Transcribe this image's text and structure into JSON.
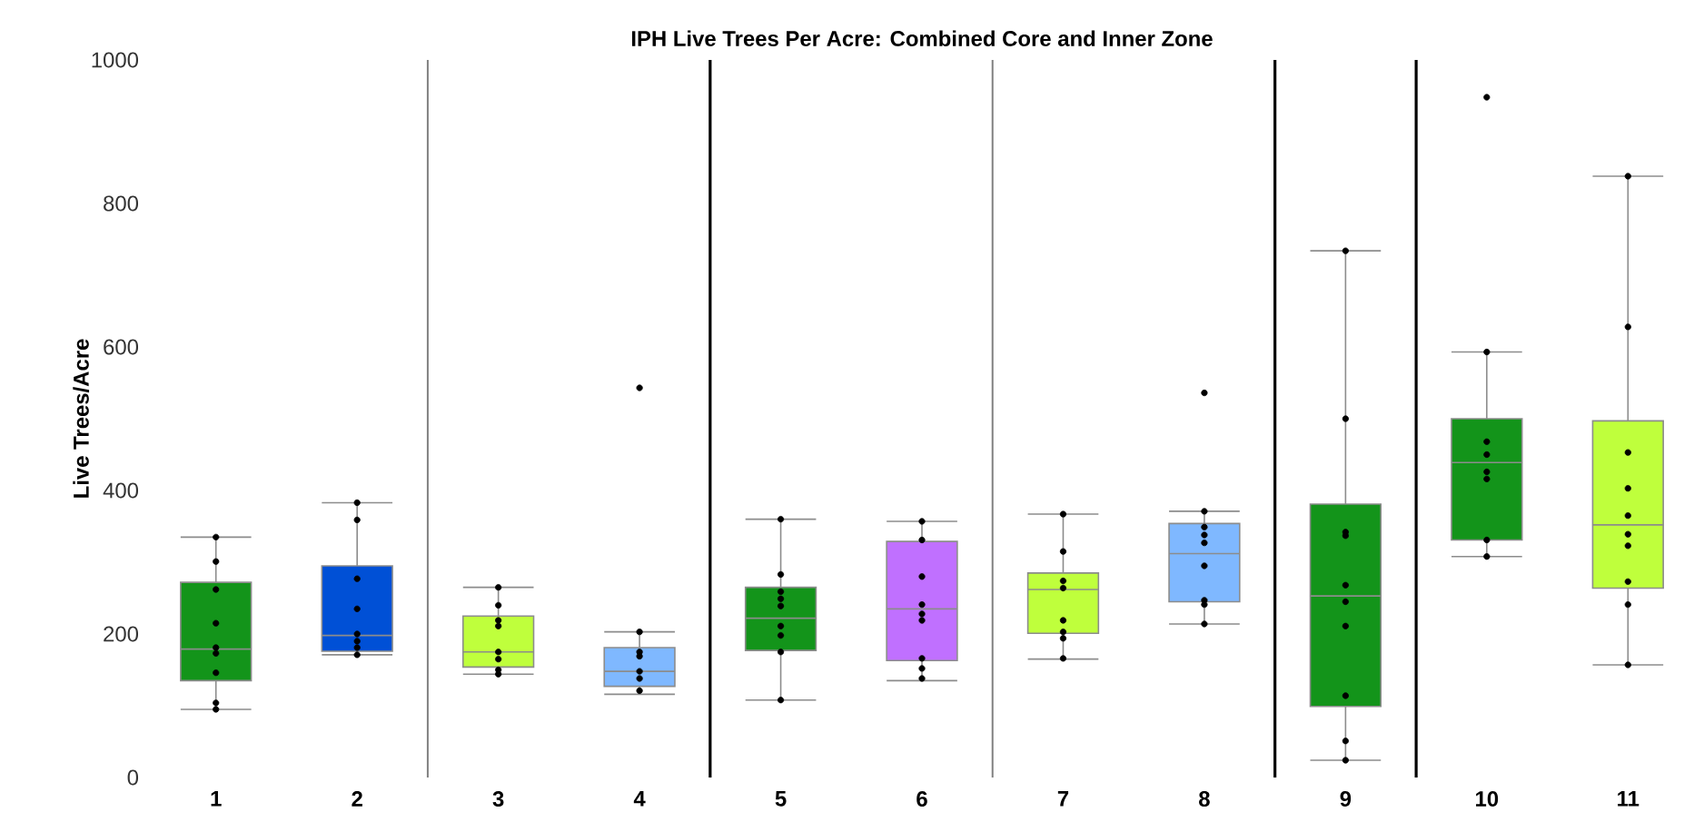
{
  "chart_data": {
    "type": "box",
    "title": "IPH Live Trees Per Acre: Combined Core and Inner Zone",
    "ylabel": "Live Trees/Acre",
    "categories": [
      "1",
      "2",
      "3",
      "4",
      "5",
      "6",
      "7",
      "8",
      "9",
      "10",
      "11"
    ],
    "ylim": [
      0,
      1000
    ],
    "yticks": [
      0,
      200,
      400,
      600,
      800,
      1000
    ],
    "grid": false,
    "series": [
      {
        "type": "box",
        "colors": [
          "#13941a",
          "#0050d6",
          "#bfff3c",
          "#7fb8ff",
          "#13941a",
          "#c070ff",
          "#bfff3c",
          "#7fb8ff",
          "#13941a",
          "#13941a",
          "#bfff3c"
        ],
        "boxes": [
          {
            "low": 95,
            "q1": 135,
            "median": 179,
            "q3": 272,
            "high": 335
          },
          {
            "low": 171,
            "q1": 176,
            "median": 198,
            "q3": 295,
            "high": 383
          },
          {
            "low": 144,
            "q1": 154,
            "median": 175,
            "q3": 225,
            "high": 265
          },
          {
            "low": 116,
            "q1": 127,
            "median": 148,
            "q3": 181,
            "high": 203,
            "outliers": [
              543
            ]
          },
          {
            "low": 108,
            "q1": 177,
            "median": 222,
            "q3": 265,
            "high": 360
          },
          {
            "low": 135,
            "q1": 163,
            "median": 235,
            "q3": 329,
            "high": 357
          },
          {
            "low": 165,
            "q1": 201,
            "median": 262,
            "q3": 285,
            "high": 367
          },
          {
            "low": 214,
            "q1": 245,
            "median": 312,
            "q3": 354,
            "high": 371,
            "outliers": [
              536
            ]
          },
          {
            "low": 24,
            "q1": 99,
            "median": 253,
            "q3": 381,
            "high": 734
          },
          {
            "low": 308,
            "q1": 331,
            "median": 439,
            "q3": 500,
            "high": 593,
            "outliers": [
              948
            ]
          },
          {
            "low": 157,
            "q1": 264,
            "median": 352,
            "q3": 497,
            "high": 838
          }
        ]
      },
      {
        "type": "scatter",
        "color": "#000000",
        "x": [
          "1",
          "1",
          "1",
          "1",
          "1",
          "1",
          "1",
          "1",
          "1",
          "2",
          "2",
          "2",
          "2",
          "2",
          "2",
          "2",
          "2",
          "3",
          "3",
          "3",
          "3",
          "3",
          "3",
          "3",
          "3",
          "4",
          "4",
          "4",
          "4",
          "4",
          "4",
          "5",
          "5",
          "5",
          "5",
          "5",
          "5",
          "5",
          "5",
          "5",
          "6",
          "6",
          "6",
          "6",
          "6",
          "6",
          "6",
          "6",
          "6",
          "7",
          "7",
          "7",
          "7",
          "7",
          "7",
          "7",
          "7",
          "8",
          "8",
          "8",
          "8",
          "8",
          "8",
          "8",
          "8",
          "9",
          "9",
          "9",
          "9",
          "9",
          "9",
          "9",
          "9",
          "9",
          "9",
          "10",
          "10",
          "10",
          "10",
          "10",
          "10",
          "10",
          "11",
          "11",
          "11",
          "11",
          "11",
          "11",
          "11",
          "11",
          "11",
          "11"
        ],
        "values": [
          335,
          301,
          262,
          215,
          181,
          173,
          146,
          104,
          95,
          383,
          359,
          277,
          235,
          200,
          190,
          181,
          171,
          265,
          240,
          219,
          211,
          175,
          165,
          150,
          144,
          203,
          175,
          169,
          148,
          138,
          121,
          360,
          283,
          259,
          249,
          239,
          211,
          198,
          175,
          108,
          357,
          331,
          280,
          241,
          228,
          219,
          166,
          152,
          138,
          367,
          315,
          274,
          264,
          219,
          203,
          194,
          166,
          371,
          349,
          338,
          327,
          295,
          247,
          241,
          214,
          734,
          500,
          342,
          337,
          268,
          245,
          211,
          114,
          51,
          24,
          593,
          468,
          450,
          426,
          416,
          331,
          308,
          838,
          628,
          453,
          403,
          365,
          339,
          323,
          273,
          241,
          157
        ]
      }
    ]
  }
}
